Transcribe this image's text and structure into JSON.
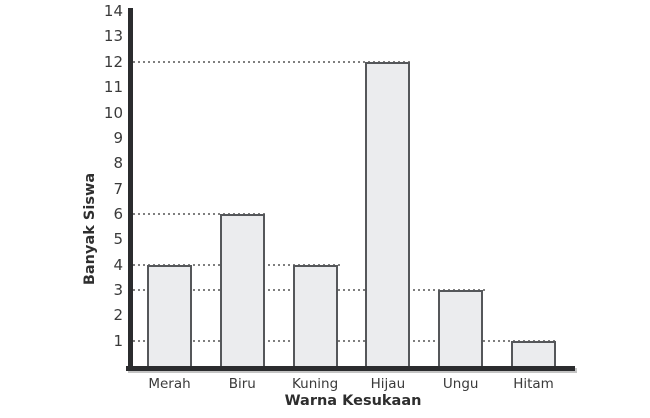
{
  "chart_data": {
    "type": "bar",
    "title": "",
    "categories": [
      "Merah",
      "Biru",
      "Kuning",
      "Hijau",
      "Ungu",
      "Hitam"
    ],
    "values": [
      4,
      6,
      4,
      12,
      3,
      1
    ],
    "xlabel": "Warna Kesukaan",
    "ylabel": "Banyak Siswa",
    "ylim": [
      0,
      14
    ],
    "yticks": [
      1,
      2,
      3,
      4,
      5,
      6,
      7,
      8,
      9,
      10,
      11,
      12,
      13,
      14
    ],
    "gridlines_at_values": [
      1,
      3,
      4,
      6,
      12
    ],
    "grid_style": "dashed",
    "legend_position": "none",
    "colors": {
      "bar_fill": "#ebecee",
      "bar_border": "#55575a",
      "axis": "#2b2c2e",
      "grid": "#7f7f7f",
      "text": "#3a3a3a"
    }
  }
}
